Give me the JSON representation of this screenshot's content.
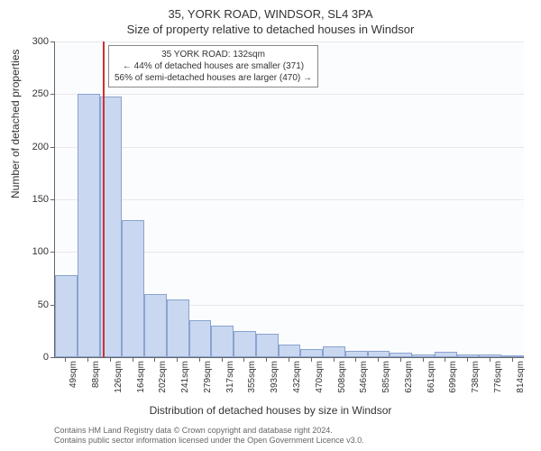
{
  "titles": {
    "main": "35, YORK ROAD, WINDSOR, SL4 3PA",
    "sub": "Size of property relative to detached houses in Windsor"
  },
  "chart": {
    "type": "histogram",
    "background_color": "#fbfcfe",
    "grid_color": "#e8e8e8",
    "axis_color": "#666666",
    "bar_fill": "#c9d7f0",
    "bar_border": "#8aa3d0",
    "marker_color": "#d03030",
    "y": {
      "label": "Number of detached properties",
      "min": 0,
      "max": 300,
      "step": 50,
      "ticks": [
        0,
        50,
        100,
        150,
        200,
        250,
        300
      ]
    },
    "x": {
      "label": "Distribution of detached houses by size in Windsor",
      "ticks": [
        "49sqm",
        "88sqm",
        "126sqm",
        "164sqm",
        "202sqm",
        "241sqm",
        "279sqm",
        "317sqm",
        "355sqm",
        "393sqm",
        "432sqm",
        "470sqm",
        "508sqm",
        "546sqm",
        "585sqm",
        "623sqm",
        "661sqm",
        "699sqm",
        "738sqm",
        "776sqm",
        "814sqm"
      ]
    },
    "values": [
      78,
      250,
      248,
      130,
      60,
      55,
      35,
      30,
      25,
      22,
      12,
      8,
      10,
      6,
      6,
      4,
      3,
      5,
      3,
      3,
      2
    ],
    "marker_label_bin": 2,
    "info_box": {
      "line1": "35 YORK ROAD: 132sqm",
      "line2": "← 44% of detached houses are smaller (371)",
      "line3": "56% of semi-detached houses are larger (470) →"
    }
  },
  "credits": {
    "line1": "Contains HM Land Registry data © Crown copyright and database right 2024.",
    "line2": "Contains public sector information licensed under the Open Government Licence v3.0."
  }
}
